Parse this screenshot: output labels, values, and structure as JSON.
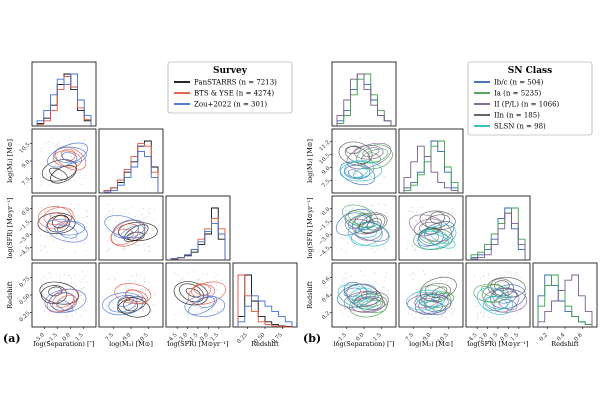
{
  "chart_data": [
    {
      "type": "corner",
      "panel_label": "(a)",
      "legend": {
        "title": "Survey",
        "entries": [
          {
            "name": "PanSTARRS (n = 7213)",
            "color": "#111111"
          },
          {
            "name": "BTS & YSE (n = 4274)",
            "color": "#e0533c"
          },
          {
            "name": "Zou+2022 (n = 301)",
            "color": "#3f6fd6"
          }
        ]
      },
      "variables": [
        {
          "label": "log(Separation) [″]",
          "range": [
            -3.0,
            1.5
          ],
          "ticks": [
            "−3.0",
            "−1.5",
            "0.0",
            "1.5"
          ]
        },
        {
          "label": "log(M₂) [M⊙]",
          "range": [
            7.5,
            11.5
          ],
          "ticks": [
            "7.5",
            "9.0",
            "10.5"
          ]
        },
        {
          "label": "log(SFR) [M⊙yr⁻¹]",
          "range": [
            -4.5,
            1.5
          ],
          "ticks": [
            "−4.5",
            "−3.0",
            "−1.5",
            "0.0",
            "1.5"
          ]
        },
        {
          "label": "Redshift",
          "range": [
            0.0,
            0.8
          ],
          "ticks": [
            "0.25",
            "0.50",
            "0.75"
          ]
        }
      ],
      "row_labels": [
        "log(M₂) [M⊙]",
        "log(SFR) [M⊙yr⁻¹]",
        "Redshift"
      ],
      "row_ticks": [
        [
          "7.5",
          "9.0",
          "10.5"
        ],
        [
          "−4.5",
          "−3.0",
          "−1.5",
          "0.0"
        ],
        [
          "0.25",
          "0.50",
          "0.75"
        ]
      ],
      "histograms": [
        {
          "series": [
            {
              "name": "PanSTARRS",
              "values": [
                0.05,
                0.15,
                0.4,
                0.8,
                1.0,
                0.7,
                0.3,
                0.1
              ]
            },
            {
              "name": "BTS & YSE",
              "values": [
                0.03,
                0.1,
                0.3,
                0.7,
                0.95,
                0.75,
                0.35,
                0.12
              ]
            },
            {
              "name": "Zou+2022",
              "values": [
                0.1,
                0.3,
                0.6,
                0.9,
                0.8,
                1.0,
                0.5,
                0.2
              ]
            }
          ]
        },
        {
          "series": [
            {
              "name": "PanSTARRS",
              "values": [
                0.05,
                0.1,
                0.2,
                0.4,
                0.6,
                0.9,
                1.0,
                0.5
              ]
            },
            {
              "name": "BTS & YSE",
              "values": [
                0.05,
                0.1,
                0.25,
                0.45,
                0.7,
                0.95,
                0.9,
                0.4
              ]
            },
            {
              "name": "Zou+2022",
              "values": [
                0.02,
                0.05,
                0.15,
                0.3,
                0.5,
                0.8,
                0.7,
                0.3
              ]
            }
          ]
        },
        {
          "series": [
            {
              "name": "PanSTARRS",
              "values": [
                0.02,
                0.05,
                0.08,
                0.15,
                0.3,
                0.5,
                1.0,
                0.4
              ]
            },
            {
              "name": "BTS & YSE",
              "values": [
                0.02,
                0.04,
                0.1,
                0.2,
                0.4,
                0.6,
                0.8,
                0.6
              ]
            },
            {
              "name": "Zou+2022",
              "values": [
                0.03,
                0.05,
                0.1,
                0.2,
                0.35,
                0.55,
                0.7,
                0.5
              ]
            }
          ]
        },
        {
          "series": [
            {
              "name": "PanSTARRS",
              "values": [
                0.2,
                1.0,
                0.5,
                0.2,
                0.1,
                0.05,
                0.02,
                0.01
              ]
            },
            {
              "name": "BTS & YSE",
              "values": [
                1.0,
                0.6,
                0.3,
                0.1,
                0.05,
                0.02,
                0.01,
                0.0
              ]
            },
            {
              "name": "Zou+2022",
              "values": [
                0.1,
                0.4,
                0.6,
                0.5,
                0.4,
                0.3,
                0.2,
                0.1
              ]
            }
          ]
        }
      ]
    },
    {
      "type": "corner",
      "panel_label": "(b)",
      "legend": {
        "title": "SN Class",
        "entries": [
          {
            "name": "Ib/c (n = 504)",
            "color": "#2f66b5"
          },
          {
            "name": "Ia (n = 5235)",
            "color": "#3ea04a"
          },
          {
            "name": "II (P/L) (n = 1066)",
            "color": "#7d5a8e"
          },
          {
            "name": "IIn (n = 185)",
            "color": "#555555"
          },
          {
            "name": "SLSN (n = 98)",
            "color": "#25b8c8"
          }
        ]
      },
      "variables": [
        {
          "label": "log(Separation) [″]",
          "range": [
            -1.5,
            1.5
          ],
          "ticks": [
            "−1.5",
            "0.0",
            "1.5"
          ]
        },
        {
          "label": "log(M₂) [M⊙]",
          "range": [
            7.5,
            11.5
          ],
          "ticks": [
            "7.5",
            "9.0",
            "10.5"
          ]
        },
        {
          "label": "log(SFR) [M⊙yr⁻¹]",
          "range": [
            -4.5,
            1.5
          ],
          "ticks": [
            "−4.5",
            "−3.0",
            "−1.5",
            "0.0",
            "1.5"
          ]
        },
        {
          "label": "Redshift",
          "range": [
            0.0,
            0.8
          ],
          "ticks": [
            "0.2",
            "0.4",
            "0.6"
          ]
        }
      ],
      "row_labels": [
        "log(M₂) [M⊙]",
        "log(SFR) [M⊙yr⁻¹]",
        "Redshift"
      ],
      "row_ticks": [
        [
          "7.5",
          "9.0",
          "10.5",
          "11.2"
        ],
        [
          "−4.5",
          "−3.0",
          "−1.5",
          "0.0"
        ],
        [
          "0.2",
          "0.4",
          "0.6"
        ]
      ],
      "histograms": [
        {
          "series": [
            {
              "name": "Ib/c",
              "values": [
                0.1,
                0.3,
                0.7,
                1.0,
                0.8,
                0.5,
                0.2,
                0.1
              ]
            },
            {
              "name": "Ia",
              "values": [
                0.05,
                0.2,
                0.6,
                0.9,
                1.0,
                0.6,
                0.3,
                0.1
              ]
            },
            {
              "name": "SLSN",
              "values": [
                0.2,
                0.5,
                0.9,
                1.0,
                0.7,
                0.4,
                0.2,
                0.1
              ]
            }
          ]
        },
        {
          "series": [
            {
              "name": "Ib/c",
              "values": [
                0.1,
                0.2,
                0.4,
                0.7,
                1.0,
                0.8,
                0.4,
                0.1
              ]
            },
            {
              "name": "Ia",
              "values": [
                0.05,
                0.15,
                0.35,
                0.6,
                0.9,
                1.0,
                0.5,
                0.2
              ]
            },
            {
              "name": "SLSN",
              "values": [
                0.3,
                0.6,
                0.9,
                0.7,
                0.4,
                0.2,
                0.1,
                0.05
              ]
            }
          ]
        },
        {
          "series": [
            {
              "name": "Ib/c",
              "values": [
                0.05,
                0.1,
                0.2,
                0.4,
                0.8,
                1.0,
                0.6,
                0.2
              ]
            },
            {
              "name": "Ia",
              "values": [
                0.1,
                0.15,
                0.3,
                0.5,
                0.7,
                0.9,
                1.0,
                0.4
              ]
            },
            {
              "name": "SLSN",
              "values": [
                0.02,
                0.05,
                0.1,
                0.3,
                0.6,
                0.9,
                0.7,
                0.3
              ]
            }
          ]
        },
        {
          "series": [
            {
              "name": "Ib/c",
              "values": [
                0.6,
                1.0,
                0.8,
                0.5,
                0.3,
                0.2,
                0.1,
                0.05
              ]
            },
            {
              "name": "Ia",
              "values": [
                0.4,
                0.8,
                1.0,
                0.7,
                0.4,
                0.2,
                0.1,
                0.05
              ]
            },
            {
              "name": "SLSN",
              "values": [
                0.1,
                0.3,
                0.5,
                0.7,
                0.9,
                1.0,
                0.6,
                0.3
              ]
            }
          ]
        }
      ]
    }
  ]
}
